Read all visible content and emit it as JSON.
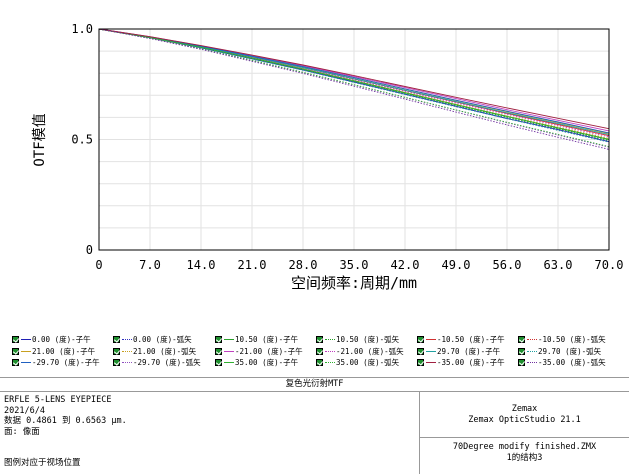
{
  "chart_data": {
    "type": "line",
    "title": "",
    "xlabel": "空间频率:周期/mm",
    "ylabel": "OTF模值",
    "xlim": [
      0,
      70
    ],
    "ylim": [
      0,
      1
    ],
    "x_ticks": [
      "0",
      "7.0",
      "14.0",
      "21.0",
      "28.0",
      "35.0",
      "42.0",
      "49.0",
      "56.0",
      "63.0",
      "70.0"
    ],
    "y_ticks": [
      "0",
      "0.5",
      "1.0"
    ],
    "grid": true,
    "legend_placement": "below",
    "x": [
      0,
      7,
      14,
      21,
      28,
      35,
      42,
      49,
      56,
      63,
      70
    ],
    "series": [
      {
        "name": "0.00 (度)-子午",
        "color": "#1f1fb4",
        "dash": false,
        "values": [
          1.0,
          0.96,
          0.915,
          0.865,
          0.815,
          0.76,
          0.705,
          0.65,
          0.595,
          0.545,
          0.49
        ]
      },
      {
        "name": "0.00 (度)-弧矢",
        "color": "#3030c0",
        "dash": true,
        "values": [
          1.0,
          0.96,
          0.915,
          0.865,
          0.815,
          0.76,
          0.705,
          0.65,
          0.595,
          0.545,
          0.49
        ]
      },
      {
        "name": "10.50 (度)-子午",
        "color": "#2aa02a",
        "dash": false,
        "values": [
          1.0,
          0.962,
          0.918,
          0.87,
          0.82,
          0.766,
          0.712,
          0.658,
          0.605,
          0.553,
          0.5
        ]
      },
      {
        "name": "10.50 (度)-弧矢",
        "color": "#2aa02a",
        "dash": true,
        "values": [
          1.0,
          0.961,
          0.916,
          0.867,
          0.817,
          0.763,
          0.708,
          0.654,
          0.6,
          0.548,
          0.495
        ]
      },
      {
        "name": "-10.50 (度)-子午",
        "color": "#d03030",
        "dash": false,
        "values": [
          1.0,
          0.963,
          0.92,
          0.874,
          0.826,
          0.774,
          0.722,
          0.67,
          0.618,
          0.568,
          0.517
        ]
      },
      {
        "name": "-10.50 (度)-弧矢",
        "color": "#d03030",
        "dash": true,
        "values": [
          1.0,
          0.961,
          0.917,
          0.869,
          0.819,
          0.766,
          0.712,
          0.658,
          0.605,
          0.553,
          0.5
        ]
      },
      {
        "name": "21.00 (度)-子午",
        "color": "#c8a020",
        "dash": false,
        "values": [
          1.0,
          0.964,
          0.922,
          0.877,
          0.83,
          0.78,
          0.728,
          0.677,
          0.626,
          0.577,
          0.527
        ]
      },
      {
        "name": "21.00 (度)-弧矢",
        "color": "#c8a020",
        "dash": true,
        "values": [
          1.0,
          0.962,
          0.918,
          0.87,
          0.82,
          0.767,
          0.713,
          0.66,
          0.607,
          0.556,
          0.505
        ]
      },
      {
        "name": "-21.00 (度)-子午",
        "color": "#c040c0",
        "dash": false,
        "values": [
          1.0,
          0.965,
          0.924,
          0.88,
          0.834,
          0.785,
          0.735,
          0.685,
          0.635,
          0.587,
          0.539
        ]
      },
      {
        "name": "-21.00 (度)-弧矢",
        "color": "#c040c0",
        "dash": true,
        "values": [
          1.0,
          0.962,
          0.919,
          0.872,
          0.823,
          0.771,
          0.718,
          0.666,
          0.614,
          0.563,
          0.512
        ]
      },
      {
        "name": "29.70 (度)-子午",
        "color": "#20a0a0",
        "dash": false,
        "values": [
          1.0,
          0.963,
          0.92,
          0.874,
          0.826,
          0.775,
          0.723,
          0.672,
          0.621,
          0.572,
          0.522
        ]
      },
      {
        "name": "29.70 (度)-弧矢",
        "color": "#20a0a0",
        "dash": true,
        "values": [
          1.0,
          0.96,
          0.914,
          0.864,
          0.813,
          0.758,
          0.703,
          0.648,
          0.594,
          0.541,
          0.488
        ]
      },
      {
        "name": "-29.70 (度)-子午",
        "color": "#2060c0",
        "dash": false,
        "values": [
          1.0,
          0.964,
          0.922,
          0.877,
          0.83,
          0.78,
          0.729,
          0.678,
          0.628,
          0.579,
          0.53
        ]
      },
      {
        "name": "-29.70 (度)-弧矢",
        "color": "#9050c0",
        "dash": true,
        "values": [
          1.0,
          0.958,
          0.91,
          0.858,
          0.804,
          0.747,
          0.69,
          0.633,
          0.576,
          0.52,
          0.465
        ]
      },
      {
        "name": "35.00 (度)-子午",
        "color": "#30b030",
        "dash": false,
        "values": [
          1.0,
          0.961,
          0.917,
          0.868,
          0.818,
          0.765,
          0.711,
          0.657,
          0.604,
          0.552,
          0.5
        ]
      },
      {
        "name": "35.00 (度)-弧矢",
        "color": "#30b030",
        "dash": true,
        "values": [
          1.0,
          0.958,
          0.91,
          0.858,
          0.804,
          0.748,
          0.691,
          0.634,
          0.578,
          0.523,
          0.468
        ]
      },
      {
        "name": "-35.00 (度)-子午",
        "color": "#a02040",
        "dash": false,
        "values": [
          1.0,
          0.965,
          0.925,
          0.882,
          0.837,
          0.789,
          0.74,
          0.691,
          0.643,
          0.596,
          0.549
        ]
      },
      {
        "name": "-35.00 (度)-弧矢",
        "color": "#7030a0",
        "dash": true,
        "values": [
          1.0,
          0.957,
          0.908,
          0.854,
          0.799,
          0.741,
          0.683,
          0.624,
          0.566,
          0.51,
          0.455
        ]
      }
    ]
  },
  "info": {
    "title": "复色光衍射MTF",
    "lens_name": "ERFLE 5-LENS EYEPIECE",
    "date": "2021/6/4",
    "data_range": "数据 0.4861 到 0.6563 µm.",
    "surface": "面: 像面",
    "legend_note": "图例对应于视场位置",
    "company": "Zemax",
    "software": "Zemax OpticStudio 21.1",
    "file": "70Degree modify finished.ZMX",
    "config": "1的结构3"
  }
}
